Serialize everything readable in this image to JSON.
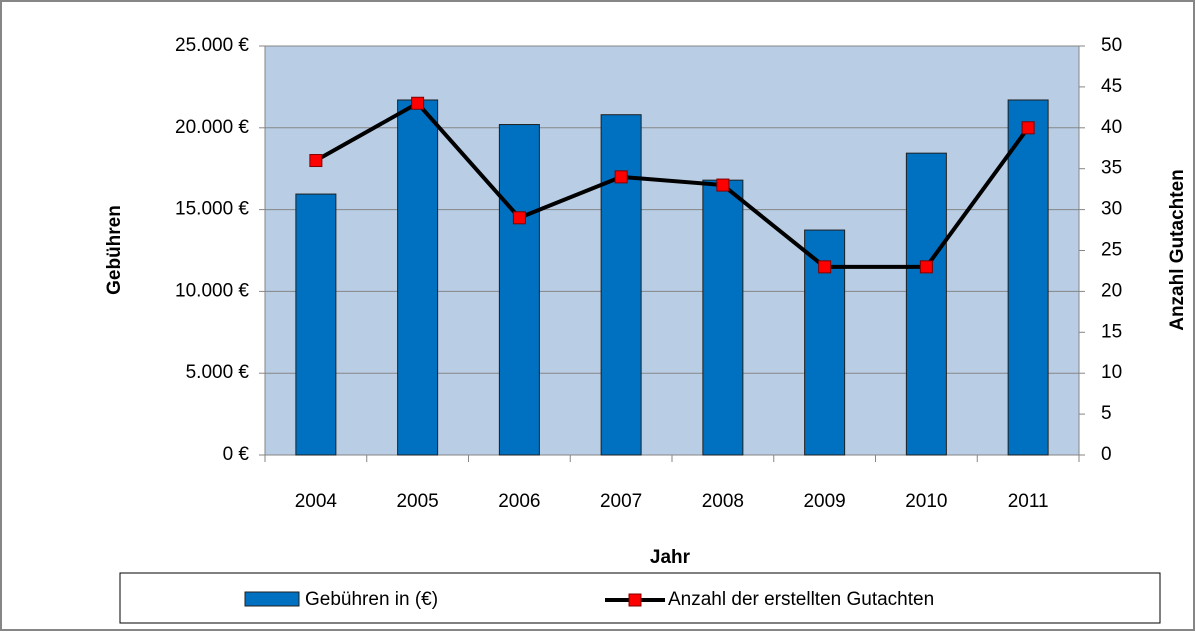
{
  "chart_data": {
    "type": "bar",
    "x_label": "Jahr",
    "y_label": "Gebühren",
    "y2_label": "Anzahl Gutachten",
    "categories": [
      "2004",
      "2005",
      "2006",
      "2007",
      "2008",
      "2009",
      "2010",
      "2011"
    ],
    "series": [
      {
        "name": "Gebühren in (€)",
        "type": "bar",
        "color": "#0070c0",
        "values": [
          15950,
          21700,
          20200,
          20800,
          16800,
          13750,
          18450,
          21700
        ]
      },
      {
        "name": "Anzahl der erstellten Gutachten",
        "type": "line",
        "axis": "y2",
        "color": "#000000",
        "marker_color": "#ff0000",
        "values": [
          36,
          43,
          29,
          34,
          33,
          23,
          23,
          40
        ]
      }
    ],
    "ylim": [
      0,
      25000
    ],
    "yticks": [
      {
        "value": 0,
        "label": "0 €"
      },
      {
        "value": 5000,
        "label": "5.000 €"
      },
      {
        "value": 10000,
        "label": "10.000 €"
      },
      {
        "value": 15000,
        "label": "15.000 €"
      },
      {
        "value": 20000,
        "label": "20.000 €"
      },
      {
        "value": 25000,
        "label": "25.000 €"
      }
    ],
    "y2lim": [
      0,
      50
    ],
    "y2ticks": [
      0,
      5,
      10,
      15,
      20,
      25,
      30,
      35,
      40,
      45,
      50
    ],
    "grid": true,
    "plot_background": "#b9cde5",
    "legend": "bottom"
  }
}
